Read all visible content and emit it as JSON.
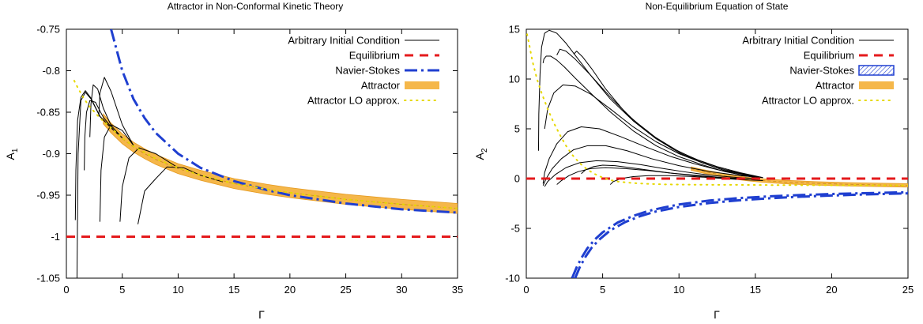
{
  "chart_data": [
    {
      "type": "line",
      "title": "Attractor in Non-Conformal Kinetic Theory",
      "xlabel": "Γ",
      "ylabel": "A",
      "ylabel_sub": "1",
      "xlim": [
        0,
        35
      ],
      "ylim": [
        -1.05,
        -0.75
      ],
      "x_ticks": [
        0,
        5,
        10,
        15,
        20,
        25,
        30,
        35
      ],
      "x_tick_labels": [
        "0",
        "5",
        "10",
        "15",
        "20",
        "25",
        "30",
        "35"
      ],
      "y_ticks": [
        -1.05,
        -1.0,
        -0.95,
        -0.9,
        -0.85,
        -0.8,
        -0.75
      ],
      "y_tick_labels": [
        "-1.05",
        "-1",
        "-0.95",
        "-0.9",
        "-0.85",
        "-0.8",
        "-0.75"
      ],
      "grid": false,
      "legend_position": "top-right",
      "legend": [
        {
          "label": "Arbitrary Initial Condition",
          "style": "thin-black"
        },
        {
          "label": "Equilibrium",
          "style": "red-dashed"
        },
        {
          "label": "Navier-Stokes",
          "style": "blue-dashdot"
        },
        {
          "label": "Attractor",
          "style": "orange-band"
        },
        {
          "label": "Attractor LO approx.",
          "style": "yellow-dotted"
        }
      ],
      "series": [
        {
          "kind": "equilibrium",
          "color": "#e41a1c",
          "x": [
            0,
            35
          ],
          "y": [
            -1.0,
            -1.0
          ]
        },
        {
          "kind": "navier_stokes",
          "color": "#1f3fd0",
          "x": [
            4.0,
            4.5,
            5,
            6,
            7,
            8,
            10,
            12,
            15,
            18,
            20,
            25,
            30,
            35
          ],
          "y": [
            -0.75,
            -0.775,
            -0.8,
            -0.834,
            -0.857,
            -0.875,
            -0.9,
            -0.917,
            -0.933,
            -0.944,
            -0.95,
            -0.96,
            -0.967,
            -0.971
          ]
        },
        {
          "kind": "attractor",
          "color": "#f2a93b",
          "band_width": 0.012,
          "x": [
            3.3,
            4,
            5,
            6,
            7,
            8,
            10,
            12,
            15,
            18,
            20,
            25,
            30,
            35
          ],
          "y": [
            -0.858,
            -0.869,
            -0.882,
            -0.892,
            -0.9,
            -0.907,
            -0.918,
            -0.926,
            -0.936,
            -0.943,
            -0.947,
            -0.955,
            -0.961,
            -0.966
          ]
        },
        {
          "kind": "attractor_lo",
          "color": "#e6d800",
          "x": [
            0.7,
            1,
            1.5,
            2,
            3,
            4,
            5,
            6,
            8,
            10,
            12,
            15,
            18,
            20,
            25,
            30,
            35
          ],
          "y": [
            -0.812,
            -0.82,
            -0.832,
            -0.842,
            -0.857,
            -0.869,
            -0.881,
            -0.891,
            -0.906,
            -0.917,
            -0.926,
            -0.936,
            -0.943,
            -0.947,
            -0.955,
            -0.961,
            -0.966
          ]
        },
        {
          "kind": "initial",
          "x": [
            0.95,
            1.0,
            1.05,
            1.3,
            1.7,
            2.2,
            3,
            4,
            5
          ],
          "y": [
            -1.05,
            -0.97,
            -0.9,
            -0.836,
            -0.826,
            -0.834,
            -0.855,
            -0.869,
            -0.881
          ]
        },
        {
          "kind": "initial",
          "x": [
            0.8,
            0.85,
            1.0,
            1.3,
            1.7,
            2.2,
            3,
            4
          ],
          "y": [
            -0.98,
            -0.92,
            -0.86,
            -0.832,
            -0.824,
            -0.833,
            -0.855,
            -0.869
          ]
        },
        {
          "kind": "initial",
          "x": [
            1.6,
            1.65,
            1.8,
            2.1,
            2.6,
            3.3,
            4.2
          ],
          "y": [
            -0.92,
            -0.88,
            -0.85,
            -0.836,
            -0.838,
            -0.856,
            -0.871
          ]
        },
        {
          "kind": "initial",
          "x": [
            2.1,
            2.2,
            2.4,
            2.8,
            3.3,
            4,
            5
          ],
          "y": [
            -0.88,
            -0.84,
            -0.817,
            -0.822,
            -0.845,
            -0.866,
            -0.881
          ]
        },
        {
          "kind": "initial",
          "x": [
            3.0,
            3.1,
            3.4,
            4,
            5,
            6
          ],
          "y": [
            -0.982,
            -0.92,
            -0.88,
            -0.865,
            -0.872,
            -0.89
          ]
        },
        {
          "kind": "initial",
          "x": [
            4.8,
            5.0,
            5.6,
            6.5,
            8,
            10
          ],
          "y": [
            -0.982,
            -0.94,
            -0.905,
            -0.893,
            -0.9,
            -0.917
          ]
        },
        {
          "kind": "initial",
          "x": [
            2.9,
            3.0,
            3.4,
            4,
            5,
            6
          ],
          "y": [
            -0.855,
            -0.827,
            -0.808,
            -0.825,
            -0.865,
            -0.89
          ]
        },
        {
          "kind": "initial",
          "x": [
            6.4,
            7,
            8,
            9,
            10.5,
            12,
            14
          ],
          "y": [
            -0.985,
            -0.945,
            -0.93,
            -0.916,
            -0.917,
            -0.926,
            -0.934
          ]
        }
      ]
    },
    {
      "type": "line",
      "title": "Non-Equilibrium Equation of State",
      "xlabel": "Γ",
      "ylabel": "A",
      "ylabel_sub": "2",
      "xlim": [
        0,
        25
      ],
      "ylim": [
        -10,
        15
      ],
      "x_ticks": [
        0,
        5,
        10,
        15,
        20,
        25
      ],
      "x_tick_labels": [
        "0",
        "5",
        "10",
        "15",
        "20",
        "25"
      ],
      "y_ticks": [
        -10,
        -5,
        0,
        5,
        10,
        15
      ],
      "y_tick_labels": [
        "-10",
        "-5",
        "0",
        "5",
        "10",
        "15"
      ],
      "grid": false,
      "legend_position": "top-right",
      "legend": [
        {
          "label": "Arbitrary Initial Condition",
          "style": "thin-black"
        },
        {
          "label": "Equilibrium",
          "style": "red-dashed"
        },
        {
          "label": "Navier-Stokes",
          "style": "blue-hatched"
        },
        {
          "label": "Attractor",
          "style": "orange-band"
        },
        {
          "label": "Attractor LO approx.",
          "style": "yellow-dotted"
        }
      ],
      "series": [
        {
          "kind": "equilibrium",
          "color": "#e41a1c",
          "x": [
            0,
            25
          ],
          "y": [
            0,
            0
          ]
        },
        {
          "kind": "navier_stokes",
          "color": "#1f3fd0",
          "x": [
            3.0,
            3.3,
            3.6,
            4,
            4.5,
            5,
            6,
            7,
            8,
            9,
            10,
            12,
            14,
            16,
            18,
            20,
            22,
            25
          ],
          "y": [
            -10,
            -8.9,
            -8.0,
            -7.0,
            -6.1,
            -5.4,
            -4.4,
            -3.75,
            -3.25,
            -2.9,
            -2.6,
            -2.2,
            -1.95,
            -1.78,
            -1.65,
            -1.55,
            -1.47,
            -1.37
          ]
        },
        {
          "kind": "navier_stokes",
          "color": "#1f3fd0",
          "x": [
            3.2,
            3.5,
            3.9,
            4.3,
            4.8,
            5.5,
            6.5,
            7.5,
            8.5,
            10,
            12,
            14,
            16,
            18,
            20,
            22,
            25
          ],
          "y": [
            -10,
            -8.9,
            -7.8,
            -6.9,
            -6.1,
            -5.2,
            -4.35,
            -3.75,
            -3.3,
            -2.85,
            -2.45,
            -2.17,
            -1.97,
            -1.82,
            -1.7,
            -1.6,
            -1.48
          ]
        },
        {
          "kind": "attractor",
          "color": "#f2a93b",
          "band_width": 0.35,
          "x": [
            10.8,
            11.5,
            12.5,
            13.5,
            14.5,
            15.5,
            17,
            19,
            21,
            23,
            25
          ],
          "y": [
            1.0,
            0.75,
            0.45,
            0.15,
            -0.05,
            -0.2,
            -0.35,
            -0.48,
            -0.57,
            -0.63,
            -0.68
          ]
        },
        {
          "kind": "attractor_lo",
          "color": "#e6d800",
          "x": [
            0.05,
            0.2,
            0.4,
            0.7,
            1.0,
            1.4,
            1.8,
            2.2,
            2.6,
            3.0,
            3.5,
            4.0,
            4.5,
            5,
            5.5,
            6,
            7,
            8,
            9,
            10,
            12,
            14,
            16,
            18,
            20,
            22,
            25
          ],
          "y": [
            14.5,
            13.4,
            11.8,
            10.0,
            8.6,
            7.0,
            5.6,
            4.4,
            3.3,
            2.4,
            1.55,
            0.9,
            0.45,
            0.1,
            -0.15,
            -0.3,
            -0.45,
            -0.53,
            -0.58,
            -0.6,
            -0.62,
            -0.63,
            -0.65,
            -0.66,
            -0.67,
            -0.68,
            -0.68
          ]
        },
        {
          "kind": "initial",
          "x": [
            0.8,
            0.82,
            0.9,
            1.0,
            1.2,
            1.5,
            2.0,
            2.6,
            3.3,
            4.2,
            5.5,
            7,
            8.5,
            10,
            11.5,
            13,
            15
          ],
          "y": [
            2.8,
            6.5,
            10.5,
            13.2,
            14.6,
            14.9,
            14.6,
            13.6,
            12.2,
            10.4,
            8.0,
            5.8,
            4.0,
            2.6,
            1.6,
            0.8,
            0.2
          ]
        },
        {
          "kind": "initial",
          "x": [
            1.1,
            1.15,
            1.3,
            1.6,
            2.0,
            2.5,
            3.2,
            4.2,
            5.5,
            7,
            8.5,
            10,
            11.5,
            13,
            15
          ],
          "y": [
            11.6,
            12.0,
            12.3,
            12.3,
            11.9,
            11.2,
            10.1,
            8.6,
            6.7,
            4.8,
            3.3,
            2.2,
            1.4,
            0.7,
            0.1
          ]
        },
        {
          "kind": "initial",
          "x": [
            2.0,
            2.2,
            2.6,
            3.2,
            4.2,
            5.5,
            7,
            8.5,
            10,
            11.5,
            13,
            15
          ],
          "y": [
            12.4,
            13.0,
            12.8,
            12.0,
            10.4,
            8.2,
            5.9,
            4.1,
            2.7,
            1.7,
            0.9,
            0.2
          ]
        },
        {
          "kind": "initial",
          "x": [
            3.1,
            3.3,
            3.7,
            4.3,
            5.2,
            6.5,
            8,
            9.5,
            11,
            12.5,
            14,
            15.5
          ],
          "y": [
            12.5,
            12.8,
            12.2,
            11.0,
            9.0,
            6.6,
            4.6,
            3.1,
            2.0,
            1.2,
            0.6,
            0.1
          ]
        },
        {
          "kind": "initial",
          "x": [
            1.2,
            1.4,
            1.8,
            2.4,
            3.2,
            4.2,
            5.5,
            7,
            8.5,
            10,
            11.5,
            13,
            15
          ],
          "y": [
            5.0,
            7.0,
            8.6,
            9.4,
            9.3,
            8.5,
            7.0,
            5.2,
            3.7,
            2.5,
            1.6,
            0.8,
            0.2
          ]
        },
        {
          "kind": "initial",
          "x": [
            1.1,
            1.2,
            1.5,
            2.0,
            2.7,
            3.6,
            4.8,
            6.2,
            7.8,
            9.5,
            11,
            12.5,
            14,
            15.5
          ],
          "y": [
            -0.5,
            0.6,
            2.0,
            3.5,
            4.7,
            5.2,
            5.0,
            4.2,
            3.2,
            2.2,
            1.5,
            0.9,
            0.4,
            0.1
          ]
        },
        {
          "kind": "initial",
          "x": [
            1.1,
            1.3,
            1.7,
            2.3,
            3.1,
            4.0,
            5.2,
            6.6,
            8.2,
            10,
            12,
            14,
            15.5
          ],
          "y": [
            -0.7,
            0.0,
            1.0,
            2.0,
            2.9,
            3.3,
            3.3,
            2.8,
            2.0,
            1.3,
            0.7,
            0.3,
            0.1
          ]
        },
        {
          "kind": "initial",
          "x": [
            1.2,
            1.4,
            1.9,
            2.6,
            3.5,
            4.6,
            6,
            7.5,
            9,
            10.5,
            12,
            13.5,
            15
          ],
          "y": [
            -0.8,
            -0.3,
            0.4,
            1.1,
            1.6,
            1.8,
            1.7,
            1.4,
            1.0,
            0.65,
            0.35,
            0.15,
            0.0
          ]
        },
        {
          "kind": "initial",
          "x": [
            2.0,
            2.3,
            2.8,
            3.4,
            4.2,
            5.2,
            6.5,
            8,
            9.5,
            11,
            12.5,
            14
          ],
          "y": [
            -0.6,
            -0.2,
            0.3,
            0.7,
            1.0,
            1.1,
            1.0,
            0.8,
            0.55,
            0.35,
            0.15,
            0.0
          ]
        },
        {
          "kind": "initial",
          "x": [
            3.6,
            3.9,
            4.4,
            5.0,
            5.8,
            6.8,
            8,
            9.5,
            11,
            12.5,
            14
          ],
          "y": [
            0.5,
            0.9,
            1.2,
            1.35,
            1.3,
            1.1,
            0.85,
            0.55,
            0.3,
            0.1,
            -0.05
          ]
        },
        {
          "kind": "initial",
          "x": [
            5.5,
            5.7,
            6.2,
            7,
            8,
            9.5,
            11,
            12.5,
            14,
            15.5
          ],
          "y": [
            -0.6,
            -0.3,
            0.0,
            0.2,
            0.3,
            0.3,
            0.2,
            0.05,
            -0.1,
            -0.2
          ]
        }
      ]
    }
  ]
}
